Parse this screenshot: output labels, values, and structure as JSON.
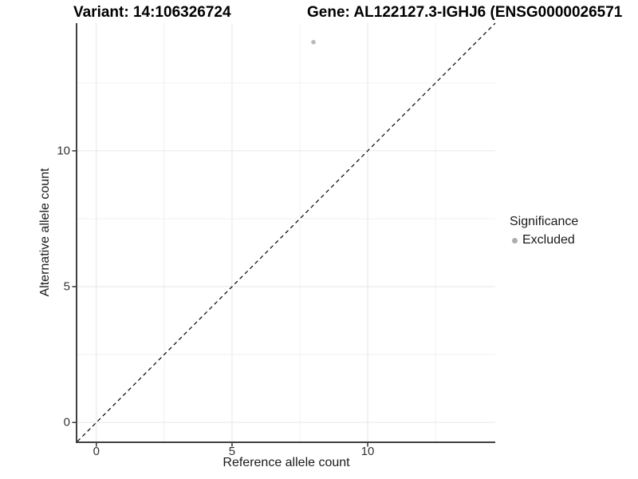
{
  "chart_data": {
    "type": "scatter",
    "title_left": "Variant: 14:106326724",
    "title_right": "Gene: AL122127.3-IGHJ6 (ENSG0000026571",
    "xlabel": "Reference allele count",
    "ylabel": "Alternative allele count",
    "xlim": [
      -0.7,
      14.7
    ],
    "ylim": [
      -0.7,
      14.7
    ],
    "x_breaks": [
      0,
      5,
      10
    ],
    "y_breaks": [
      0,
      5,
      10
    ],
    "x_minor_breaks": [
      2.5,
      7.5,
      12.5
    ],
    "y_minor_breaks": [
      2.5,
      7.5,
      12.5
    ],
    "grid": true,
    "reference_line": {
      "type": "identity",
      "style": "dashed",
      "color": "#000000"
    },
    "series": [
      {
        "name": "Excluded",
        "color": "#b9b9b9",
        "points": [
          [
            8,
            14
          ]
        ],
        "point_radius": 2.8
      }
    ],
    "legend": {
      "title": "Significance",
      "position": "right",
      "items": [
        {
          "label": "Excluded",
          "color": "#adadad"
        }
      ]
    },
    "colors": {
      "grid_major": "#e6e6e6",
      "grid_minor": "#f0f0f0",
      "axis_line": "#404040",
      "tick_mark": "#333333"
    }
  }
}
